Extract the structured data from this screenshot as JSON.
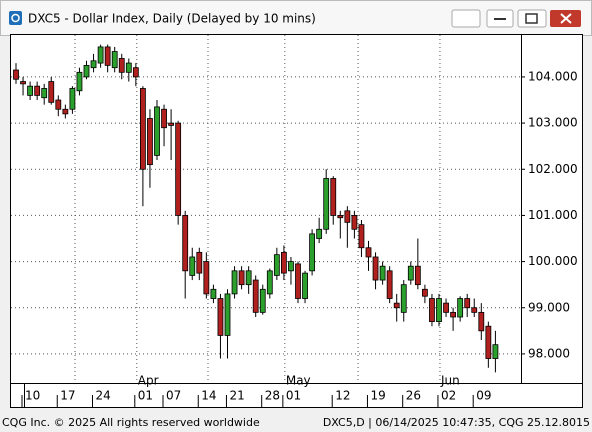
{
  "window_title": "DXC5 - Dollar Index, Daily (Delayed by 10 mins)",
  "footer_left": "CQG Inc. © 2025 All rights reserved worldwide",
  "footer_right": "DXC5,D | 06/14/2025 10:47:35, CQG 25.12.8015",
  "chart_data": {
    "type": "candlestick",
    "categories": [
      "10",
      null,
      null,
      null,
      null,
      "17",
      null,
      null,
      null,
      null,
      "24",
      null,
      null,
      null,
      null,
      null,
      "01",
      null,
      null,
      null,
      "07",
      null,
      null,
      null,
      null,
      "14",
      null,
      null,
      null,
      "21",
      null,
      null,
      null,
      null,
      "28",
      null,
      null,
      "01",
      null,
      null,
      null,
      null,
      null,
      null,
      "12",
      null,
      null,
      null,
      null,
      "19",
      null,
      null,
      null,
      null,
      "26",
      null,
      null,
      null,
      null,
      "02",
      null,
      null,
      null,
      null,
      "09",
      null,
      null,
      null,
      null
    ],
    "months": [
      null,
      null,
      null,
      null,
      null,
      null,
      null,
      null,
      null,
      null,
      null,
      null,
      null,
      null,
      null,
      null,
      "Apr",
      null,
      null,
      null,
      null,
      null,
      null,
      null,
      null,
      null,
      null,
      null,
      null,
      null,
      null,
      null,
      null,
      null,
      null,
      null,
      null,
      "May",
      null,
      null,
      null,
      null,
      null,
      null,
      null,
      null,
      null,
      null,
      null,
      null,
      null,
      null,
      null,
      null,
      null,
      null,
      null,
      null,
      null,
      "Jun",
      null,
      null,
      null,
      null,
      null,
      null,
      null,
      null,
      null
    ],
    "open": [
      104.15,
      103.9,
      103.6,
      103.8,
      103.55,
      103.9,
      103.5,
      103.3,
      103.3,
      103.7,
      104.0,
      104.2,
      104.3,
      104.65,
      104.2,
      104.4,
      104.1,
      104.2,
      103.75,
      103.1,
      102.3,
      103.3,
      103.0,
      103.0,
      101.0,
      99.7,
      100.2,
      100.0,
      99.2,
      99.2,
      98.4,
      99.3,
      99.8,
      99.5,
      99.6,
      98.9,
      99.3,
      99.7,
      100.2,
      99.8,
      99.95,
      99.2,
      99.8,
      100.5,
      100.7,
      101.8,
      101.0,
      101.1,
      101.0,
      100.8,
      100.3,
      100.1,
      99.6,
      99.8,
      99.1,
      98.9,
      99.6,
      99.9,
      99.4,
      99.2,
      98.7,
      99.1,
      98.9,
      98.8,
      99.2,
      99.0,
      98.9,
      98.6,
      97.9
    ],
    "high": [
      104.3,
      104.0,
      103.9,
      103.9,
      103.85,
      104.0,
      103.6,
      103.4,
      103.8,
      104.2,
      104.35,
      104.5,
      104.7,
      104.7,
      104.65,
      104.5,
      104.4,
      104.3,
      103.8,
      103.3,
      103.5,
      103.4,
      103.3,
      103.05,
      101.1,
      100.3,
      100.3,
      100.2,
      99.5,
      99.3,
      99.4,
      99.9,
      99.9,
      99.9,
      99.7,
      99.5,
      99.85,
      100.3,
      100.35,
      100.1,
      100.0,
      99.8,
      100.7,
      100.95,
      102.0,
      101.85,
      101.1,
      101.2,
      101.1,
      100.9,
      100.45,
      100.2,
      100.0,
      99.9,
      99.3,
      99.6,
      100.0,
      100.5,
      99.5,
      99.3,
      99.3,
      99.2,
      99.0,
      99.25,
      99.3,
      99.2,
      99.1,
      98.7,
      98.5
    ],
    "low": [
      103.85,
      103.6,
      103.5,
      103.5,
      103.4,
      103.4,
      103.15,
      103.1,
      103.2,
      103.6,
      103.95,
      104.1,
      104.2,
      104.1,
      104.1,
      103.95,
      103.9,
      103.8,
      101.2,
      101.6,
      102.2,
      102.5,
      102.2,
      100.8,
      99.2,
      99.6,
      99.6,
      99.2,
      99.1,
      97.9,
      97.9,
      99.2,
      99.4,
      99.3,
      98.8,
      98.85,
      99.2,
      99.6,
      99.6,
      99.5,
      99.1,
      99.1,
      99.7,
      100.4,
      100.6,
      100.8,
      100.5,
      100.3,
      100.5,
      100.1,
      99.8,
      99.4,
      99.5,
      99.1,
      98.7,
      98.7,
      99.5,
      99.4,
      99.1,
      98.6,
      98.6,
      98.8,
      98.5,
      98.7,
      98.8,
      98.8,
      98.3,
      97.7,
      97.6
    ],
    "close": [
      103.95,
      103.85,
      103.8,
      103.6,
      103.75,
      103.45,
      103.3,
      103.2,
      103.75,
      104.1,
      104.25,
      104.35,
      104.65,
      104.25,
      104.55,
      104.1,
      104.3,
      104.0,
      102.0,
      102.1,
      103.35,
      102.9,
      102.95,
      101.0,
      99.8,
      100.1,
      99.75,
      99.3,
      99.4,
      98.4,
      99.3,
      99.8,
      99.5,
      99.8,
      98.9,
      99.4,
      99.8,
      100.15,
      99.75,
      100.0,
      99.2,
      99.75,
      100.6,
      100.7,
      101.8,
      101.0,
      100.95,
      100.85,
      100.7,
      100.3,
      100.1,
      99.6,
      99.9,
      99.2,
      99.0,
      99.5,
      99.9,
      99.5,
      99.25,
      98.7,
      99.2,
      98.9,
      98.8,
      99.2,
      99.0,
      98.9,
      98.5,
      97.9,
      98.2
    ],
    "up_color": "#2ca02c",
    "down_color": "#b0201e",
    "ylim": [
      97.37,
      104.93
    ],
    "yticks": [
      {
        "value": 98,
        "label": "98.000"
      },
      {
        "value": 99,
        "label": "99.000"
      },
      {
        "value": 100,
        "label": "100.000"
      },
      {
        "value": 101,
        "label": "101.000"
      },
      {
        "value": 102,
        "label": "102.000"
      },
      {
        "value": 103,
        "label": "103.000"
      },
      {
        "value": 104,
        "label": "104.000"
      }
    ],
    "grid": true
  }
}
